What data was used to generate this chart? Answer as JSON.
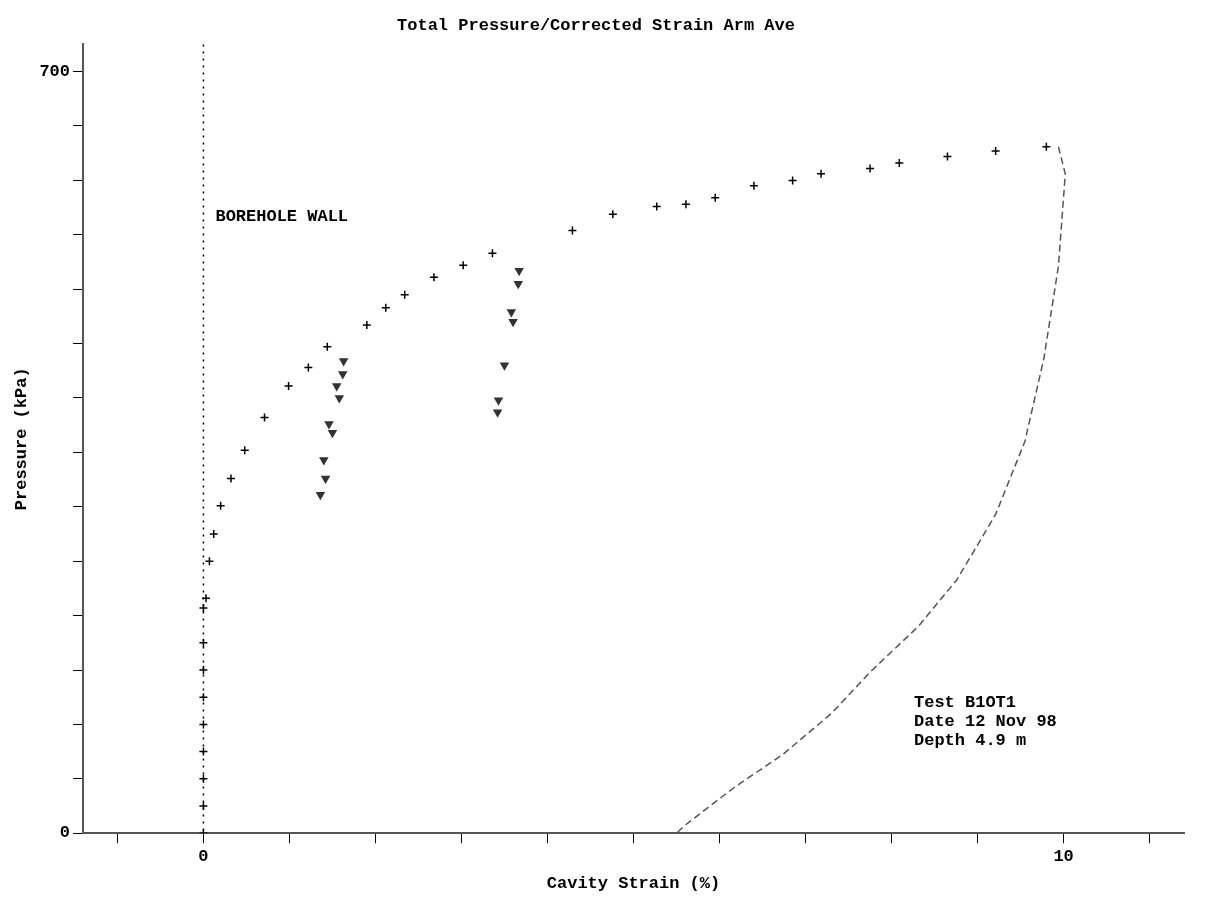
{
  "chart_data": {
    "type": "scatter",
    "title": "Total Pressure/Corrected Strain Arm Ave",
    "xlabel": "Cavity Strain (%)",
    "ylabel": "Pressure (kPa)",
    "xlim": [
      -1.4,
      11.4
    ],
    "xticks": [
      {
        "value": -1,
        "label": null
      },
      0,
      {
        "value": 1,
        "label": null
      },
      {
        "value": 2,
        "label": null
      },
      {
        "value": 3,
        "label": null
      },
      {
        "value": 4,
        "label": null
      },
      {
        "value": 5,
        "label": null
      },
      {
        "value": 6,
        "label": null
      },
      {
        "value": 7,
        "label": null
      },
      {
        "value": 8,
        "label": null
      },
      {
        "value": 9,
        "label": null
      },
      10,
      {
        "value": 11,
        "label": null
      }
    ],
    "ylim": [
      0,
      725
    ],
    "yticks": [
      0,
      {
        "value": 50,
        "label": null
      },
      {
        "value": 100,
        "label": null
      },
      {
        "value": 150,
        "label": null
      },
      {
        "value": 200,
        "label": null
      },
      {
        "value": 250,
        "label": null
      },
      {
        "value": 300,
        "label": null
      },
      {
        "value": 350,
        "label": null
      },
      {
        "value": 400,
        "label": null
      },
      {
        "value": 450,
        "label": null
      },
      {
        "value": 500,
        "label": null
      },
      {
        "value": 550,
        "label": null
      },
      {
        "value": 600,
        "label": null
      },
      {
        "value": 650,
        "label": null
      },
      700
    ],
    "grid": false,
    "legend": false,
    "ref_lines": [
      {
        "axis": "x",
        "value": 0,
        "label": "BOREHOLE WALL",
        "line_style": "dotted",
        "color": "#000000"
      }
    ],
    "annotations": [
      "Test B1OT1",
      "Date 12 Nov 98",
      "Depth 4.9 m"
    ],
    "series": [
      {
        "type": "scatter",
        "marker": "cross",
        "color": "#000000",
        "x": [
          0,
          0,
          0,
          0,
          0,
          0,
          0,
          0,
          0,
          0.03,
          0.07,
          0.12,
          0.2,
          0.32,
          0.48,
          0.71,
          0.99,
          1.22,
          1.44,
          1.9,
          2.12,
          2.34,
          2.68,
          3.02,
          3.36,
          4.29,
          4.76,
          5.27,
          5.61,
          5.95,
          6.4,
          6.85,
          7.18,
          7.75,
          8.09,
          8.65,
          9.21,
          9.8
        ],
        "values": [
          0,
          25,
          50,
          75,
          100,
          125,
          150,
          175,
          207,
          216,
          250,
          275,
          301,
          326,
          352,
          382,
          411,
          428,
          447,
          467,
          483,
          495,
          511,
          522,
          533,
          554,
          569,
          576,
          578,
          584,
          595,
          600,
          606,
          611,
          616,
          622,
          627,
          631
        ]
      },
      {
        "type": "scatter",
        "marker": "triangle",
        "color": "#333333",
        "x": [
          1.63,
          1.55,
          1.46,
          1.4,
          1.36,
          1.42,
          1.5,
          1.58,
          1.62,
          3.67,
          3.6,
          3.5,
          3.42,
          3.43,
          3.58,
          3.66
        ],
        "values": [
          434,
          411,
          376,
          343,
          311,
          326,
          368,
          400,
          422,
          517,
          470,
          430,
          387,
          398,
          479,
          505
        ]
      },
      {
        "type": "line",
        "marker": "none",
        "line_style": "dashed",
        "color": "#555555",
        "x": [
          9.94,
          10.02,
          9.94,
          9.77,
          9.55,
          9.21,
          8.76,
          8.31,
          7.75,
          7.3,
          6.73,
          6.17,
          5.61,
          5.5
        ],
        "values": [
          631,
          606,
          521,
          436,
          360,
          293,
          233,
          190,
          148,
          110,
          72,
          42,
          8,
          0
        ]
      }
    ]
  }
}
